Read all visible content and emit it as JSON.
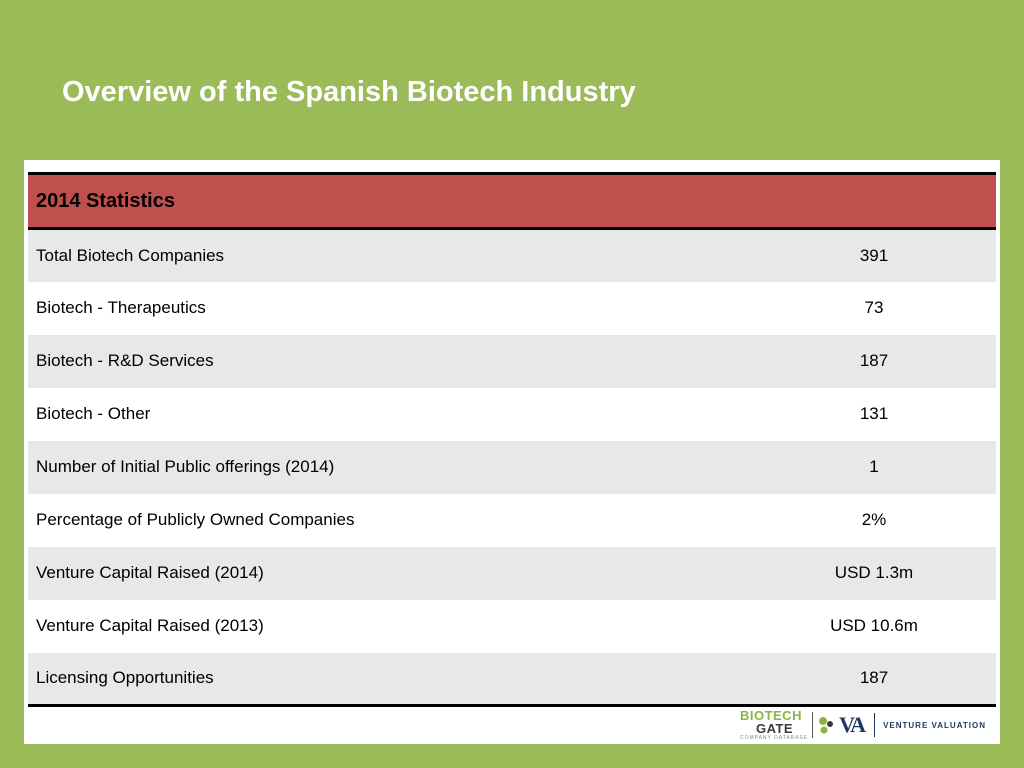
{
  "slide": {
    "title": "Overview of the Spanish Biotech Industry"
  },
  "table": {
    "header": "2014 Statistics",
    "rows": [
      {
        "label": "Total Biotech Companies",
        "value": "391"
      },
      {
        "label": "Biotech - Therapeutics",
        "value": "73"
      },
      {
        "label": "Biotech - R&D Services",
        "value": "187"
      },
      {
        "label": "Biotech - Other",
        "value": "131"
      },
      {
        "label": "Number of Initial Public offerings (2014)",
        "value": "1"
      },
      {
        "label": "Percentage of Publicly Owned Companies",
        "value": "2%"
      },
      {
        "label": "Venture Capital Raised (2014)",
        "value": "USD 1.3m"
      },
      {
        "label": "Venture Capital Raised (2013)",
        "value": "USD 10.6m"
      },
      {
        "label": "Licensing Opportunities",
        "value": "187"
      }
    ]
  },
  "footer": {
    "biotechgate_word1": "BIOTECH",
    "biotechgate_word2": "GATE",
    "biotechgate_tagline": "COMPANY DATABASE",
    "va_mark": "VA",
    "va_text": "VENTURE VALUATION"
  },
  "colors": {
    "background": "#9bbb59",
    "header_fill": "#c0504d",
    "row_band": "#e8e8e8"
  }
}
